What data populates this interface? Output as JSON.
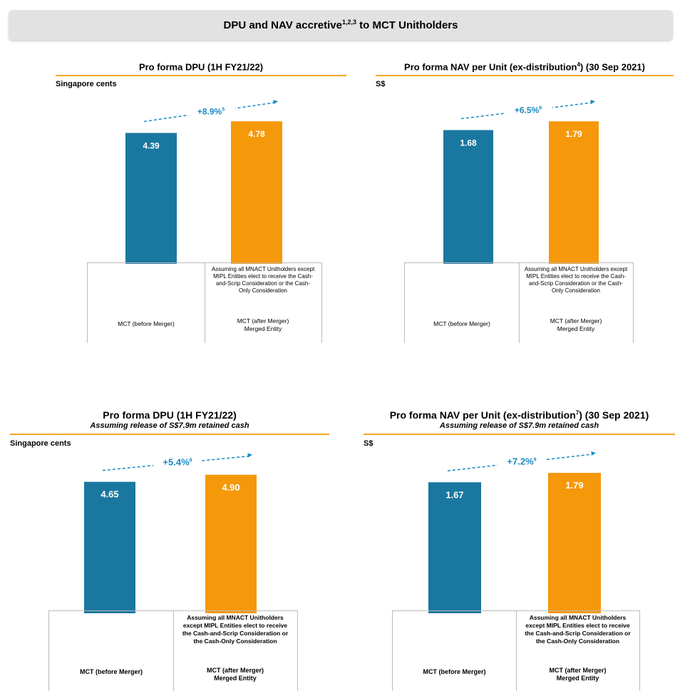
{
  "banner": {
    "title_pre": "DPU and NAV accretive",
    "title_sup": "1,2,3",
    "title_post": " to MCT Unitholders"
  },
  "colors": {
    "blue": "#1a77a0",
    "orange": "#f5980a",
    "arrow": "#1a8ac4",
    "rule": "#f5a623"
  },
  "chart_data": [
    {
      "type": "bar",
      "title_pre": "Pro forma DPU (1H FY21/22)",
      "title_sup": "",
      "title_post": "",
      "subtitle": "",
      "unit": "Singapore cents",
      "categories": [
        "MCT (before Merger)",
        "MCT (after Merger)\nMerged Entity"
      ],
      "note": "Assuming all MNACT Unitholders except MIPL Entities elect to receive the Cash-and-Scrip Consideration or the Cash-Only Consideration",
      "values": [
        4.39,
        4.78
      ],
      "value_labels": [
        "4.39",
        "4.78"
      ],
      "change_label": "+8.9%",
      "change_sup": "5",
      "ylim": [
        0,
        5.5
      ]
    },
    {
      "type": "bar",
      "title_pre": "Pro forma NAV per Unit (ex-distribution",
      "title_sup": "4",
      "title_post": ") (30 Sep 2021)",
      "subtitle": "",
      "unit": "S$",
      "categories": [
        "MCT (before Merger)",
        "MCT (after Merger)\nMerged Entity"
      ],
      "note": "Assuming all MNACT Unitholders except MIPL Entities elect to receive the Cash-and-Scrip Consideration or the Cash-Only Consideration",
      "values": [
        1.68,
        1.79
      ],
      "value_labels": [
        "1.68",
        "1.79"
      ],
      "change_label": "+6.5%",
      "change_sup": "6",
      "ylim": [
        0,
        2.06
      ]
    },
    {
      "type": "bar",
      "title_pre": "Pro forma DPU (1H FY21/22)",
      "title_sup": "",
      "title_post": "",
      "subtitle": "Assuming release of S$7.9m retained cash",
      "unit": "Singapore cents",
      "categories": [
        "MCT (before Merger)",
        "MCT (after Merger)\nMerged Entity"
      ],
      "note": "Assuming all MNACT Unitholders except MIPL Entities elect to receive the Cash-and-Scrip Consideration or the Cash-Only Consideration",
      "values": [
        4.65,
        4.9
      ],
      "value_labels": [
        "4.65",
        "4.90"
      ],
      "change_label": "+5.4%",
      "change_sup": "8",
      "ylim": [
        0,
        5.55
      ]
    },
    {
      "type": "bar",
      "title_pre": "Pro forma NAV per Unit (ex-distribution",
      "title_sup": "7",
      "title_post": ") (30 Sep 2021)",
      "subtitle": "Assuming release of S$7.9m retained cash",
      "unit": "S$",
      "categories": [
        "MCT (before Merger)",
        "MCT (after Merger)\nMerged Entity"
      ],
      "note": "Assuming all MNACT Unitholders except MIPL Entities elect to receive the Cash-and-Scrip Consideration or the Cash-Only Consideration",
      "values": [
        1.67,
        1.79
      ],
      "value_labels": [
        "1.67",
        "1.79"
      ],
      "change_label": "+7.2%",
      "change_sup": "9",
      "ylim": [
        0,
        2.0
      ]
    }
  ]
}
